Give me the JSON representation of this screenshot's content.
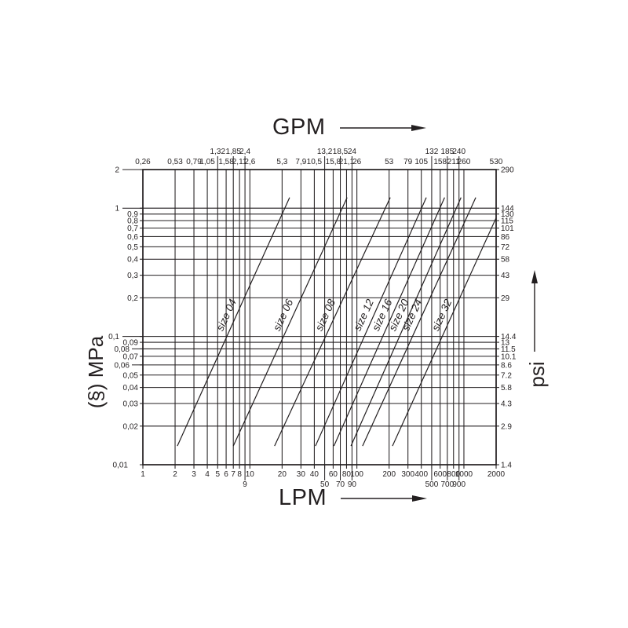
{
  "page": {
    "background": "#ffffff",
    "ink": "#231f20"
  },
  "titles": {
    "top": "GPM",
    "bottom": "LPM",
    "left": "(§) MPa",
    "right": "psi"
  },
  "icons": {
    "top_arrow": "right-arrow",
    "bottom_arrow": "right-arrow",
    "right_arrow": "up-arrow"
  },
  "chart_data": {
    "type": "line",
    "title": "",
    "description": "Log-log pressure drop vs flow rate chart for coupling sizes 04-32",
    "grid": true,
    "x_axis": {
      "unit_top": "GPM",
      "unit_bottom": "LPM",
      "scale": "log",
      "min": 1,
      "max": 2000,
      "ticks": [
        {
          "v": 1,
          "lpm": "1",
          "gpm": "0,26"
        },
        {
          "v": 2,
          "lpm": "2",
          "gpm": "0,53"
        },
        {
          "v": 3,
          "lpm": "3",
          "gpm": "0,79"
        },
        {
          "v": 4,
          "lpm": "4",
          "gpm": "1,05"
        },
        {
          "v": 5,
          "lpm": "5",
          "gpm": "1,32"
        },
        {
          "v": 6,
          "lpm": "6",
          "gpm": "1,58"
        },
        {
          "v": 7,
          "lpm": "7",
          "gpm": "1,85"
        },
        {
          "v": 8,
          "lpm": "8",
          "gpm": "2,11"
        },
        {
          "v": 9,
          "lpm": "9",
          "gpm": "2,4"
        },
        {
          "v": 10,
          "lpm": "10",
          "gpm": "2,6"
        },
        {
          "v": 20,
          "lpm": "20",
          "gpm": "5,3"
        },
        {
          "v": 30,
          "lpm": "30",
          "gpm": "7,9"
        },
        {
          "v": 40,
          "lpm": "40",
          "gpm": "10,5"
        },
        {
          "v": 50,
          "lpm": "50",
          "gpm": "13,2"
        },
        {
          "v": 60,
          "lpm": "60",
          "gpm": "15,8"
        },
        {
          "v": 70,
          "lpm": "70",
          "gpm": "18,5"
        },
        {
          "v": 80,
          "lpm": "80",
          "gpm": "21,1"
        },
        {
          "v": 90,
          "lpm": "90",
          "gpm": "24"
        },
        {
          "v": 100,
          "lpm": "100",
          "gpm": "26"
        },
        {
          "v": 200,
          "lpm": "200",
          "gpm": "53"
        },
        {
          "v": 300,
          "lpm": "300",
          "gpm": "79"
        },
        {
          "v": 400,
          "lpm": "400",
          "gpm": "105"
        },
        {
          "v": 500,
          "lpm": "500",
          "gpm": "132"
        },
        {
          "v": 600,
          "lpm": "600",
          "gpm": "158"
        },
        {
          "v": 700,
          "lpm": "700",
          "gpm": "185"
        },
        {
          "v": 800,
          "lpm": "800",
          "gpm": "211"
        },
        {
          "v": 900,
          "lpm": "900",
          "gpm": "240"
        },
        {
          "v": 1000,
          "lpm": "1000",
          "gpm": "260"
        },
        {
          "v": 2000,
          "lpm": "2000",
          "gpm": "530"
        }
      ],
      "top_staggered": [
        5,
        7,
        9,
        50,
        70,
        90,
        500,
        700,
        900
      ],
      "bottom_staggered": [
        9,
        50,
        70,
        90,
        500,
        700,
        900
      ]
    },
    "y_axis": {
      "unit_left": "MPa",
      "unit_right": "psi",
      "scale": "log",
      "min": 0.01,
      "max": 2,
      "ticks": [
        {
          "v": 2,
          "mpa": "2",
          "psi": "290",
          "pos": "major"
        },
        {
          "v": 1,
          "mpa": "1",
          "psi": "144",
          "pos": "major"
        },
        {
          "v": 0.9,
          "mpa": "0,9",
          "psi": "130"
        },
        {
          "v": 0.8,
          "mpa": "0,8",
          "psi": "115"
        },
        {
          "v": 0.7,
          "mpa": "0,7",
          "psi": "101"
        },
        {
          "v": 0.6,
          "mpa": "0,6",
          "psi": "86"
        },
        {
          "v": 0.5,
          "mpa": "0,5",
          "psi": "72"
        },
        {
          "v": 0.4,
          "mpa": "0,4",
          "psi": "58"
        },
        {
          "v": 0.3,
          "mpa": "0,3",
          "psi": "43"
        },
        {
          "v": 0.2,
          "mpa": "0,2",
          "psi": "29"
        },
        {
          "v": 0.1,
          "mpa": "0,1",
          "psi": "14.4",
          "pos": "major"
        },
        {
          "v": 0.09,
          "mpa": "0,09",
          "psi": "13"
        },
        {
          "v": 0.08,
          "mpa": "0,08",
          "psi": "11.5",
          "pos": "offset"
        },
        {
          "v": 0.07,
          "mpa": "0,07",
          "psi": "10.1"
        },
        {
          "v": 0.06,
          "mpa": "0,06",
          "psi": "8.6",
          "pos": "offset"
        },
        {
          "v": 0.05,
          "mpa": "0,05",
          "psi": "7.2"
        },
        {
          "v": 0.04,
          "mpa": "0,04",
          "psi": "5.8"
        },
        {
          "v": 0.03,
          "mpa": "0,03",
          "psi": "4.3"
        },
        {
          "v": 0.02,
          "mpa": "0,02",
          "psi": "2.9"
        },
        {
          "v": 0.01,
          "mpa": "0,01",
          "psi": "1.4",
          "pos": "corner"
        }
      ]
    },
    "series": [
      {
        "name": "size 04",
        "points": [
          [
            2.1,
            0.014
          ],
          [
            23.5,
            1.21
          ]
        ]
      },
      {
        "name": "size 06",
        "points": [
          [
            7.0,
            0.014
          ],
          [
            81,
            1.21
          ]
        ]
      },
      {
        "name": "size 08",
        "points": [
          [
            17,
            0.014
          ],
          [
            205,
            1.21
          ]
        ]
      },
      {
        "name": "size 12",
        "points": [
          [
            41,
            0.014
          ],
          [
            445,
            1.21
          ]
        ]
      },
      {
        "name": "size 16",
        "points": [
          [
            61,
            0.014
          ],
          [
            660,
            1.21
          ]
        ]
      },
      {
        "name": "size 20",
        "points": [
          [
            88,
            0.014
          ],
          [
            940,
            1.21
          ]
        ]
      },
      {
        "name": "size 24",
        "points": [
          [
            113,
            0.014
          ],
          [
            1290,
            1.21
          ]
        ]
      },
      {
        "name": "size 32",
        "points": [
          [
            215,
            0.014
          ],
          [
            2000,
            0.84
          ]
        ]
      }
    ],
    "series_label_anchor_mpa": 0.143
  }
}
